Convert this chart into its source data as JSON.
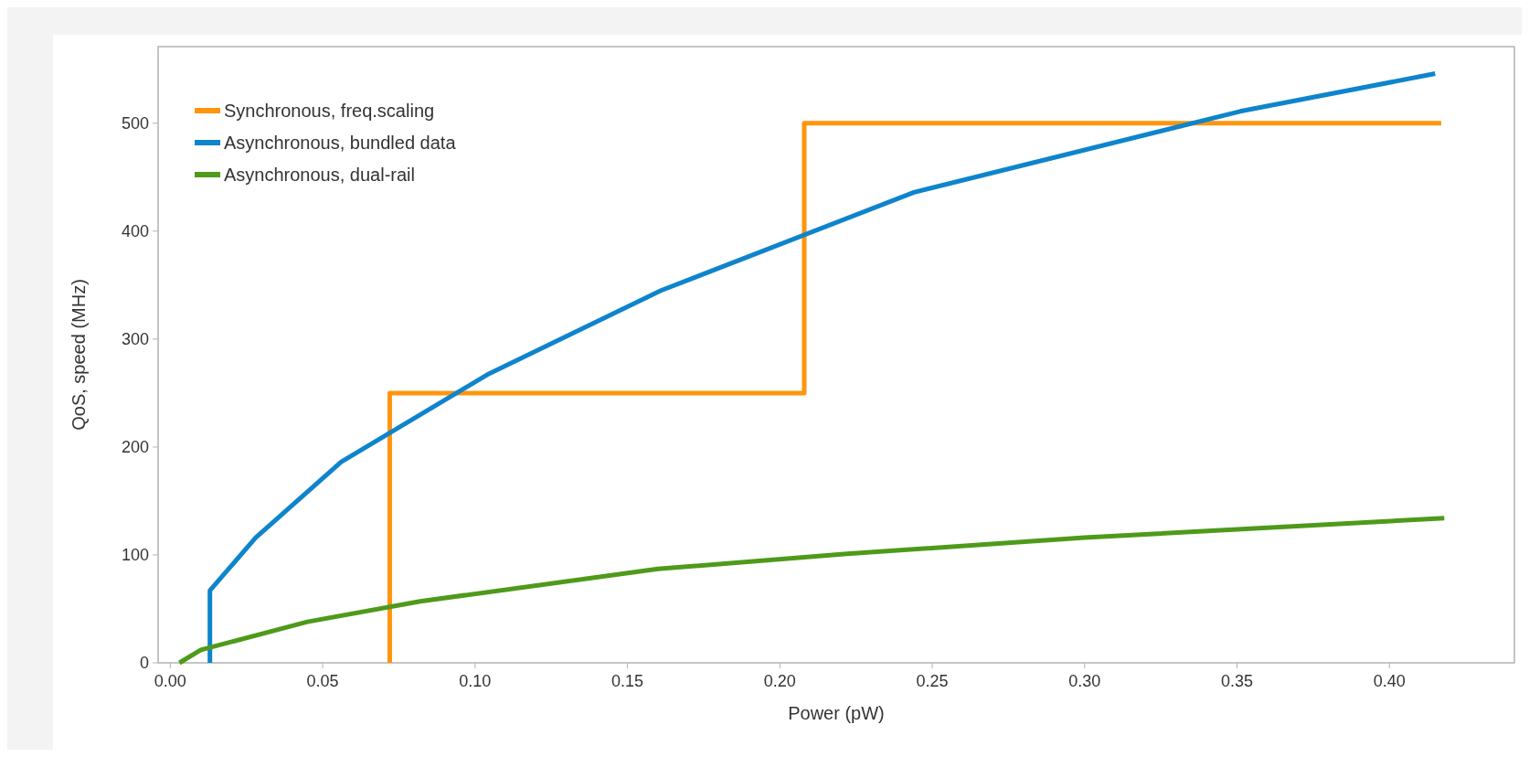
{
  "chart_data": {
    "type": "line",
    "xlabel": "Power (pW)",
    "ylabel": "QoS, speed (MHz)",
    "xlim": [
      -0.004,
      0.441
    ],
    "ylim": [
      0,
      571
    ],
    "xticks": [
      {
        "value": 0,
        "label": "0.00"
      },
      {
        "value": 0.05,
        "label": "0.05"
      },
      {
        "value": 0.1,
        "label": "0.10"
      },
      {
        "value": 0.15,
        "label": "0.15"
      },
      {
        "value": 0.2,
        "label": "0.20"
      },
      {
        "value": 0.25,
        "label": "0.25"
      },
      {
        "value": 0.3,
        "label": "0.30"
      },
      {
        "value": 0.35,
        "label": "0.35"
      },
      {
        "value": 0.4,
        "label": "0.40"
      }
    ],
    "yticks": [
      0,
      100,
      200,
      300,
      400,
      500
    ],
    "legend": "top left",
    "grid": false,
    "marker": "none",
    "line_style": "solid",
    "series": [
      {
        "name": "Synchronous, freq.scaling",
        "color": "#ff950e",
        "x": [
          0.072,
          0.072,
          0.208,
          0.208,
          0.417
        ],
        "values": [
          0,
          250,
          250,
          500,
          500
        ]
      },
      {
        "name": "Asynchronous, bundled data",
        "color": "#0e84cc",
        "x": [
          0.013,
          0.013,
          0.028,
          0.056,
          0.104,
          0.161,
          0.244,
          0.351,
          0.415
        ],
        "values": [
          0,
          67,
          116,
          186,
          267,
          345,
          436,
          511,
          546
        ]
      },
      {
        "name": "Asynchronous, dual-rail",
        "color": "#4e9a1a",
        "x": [
          0.003,
          0.01,
          0.045,
          0.082,
          0.16,
          0.222,
          0.3,
          0.418
        ],
        "values": [
          0,
          12,
          38,
          57,
          87,
          101,
          116,
          134
        ]
      }
    ]
  }
}
